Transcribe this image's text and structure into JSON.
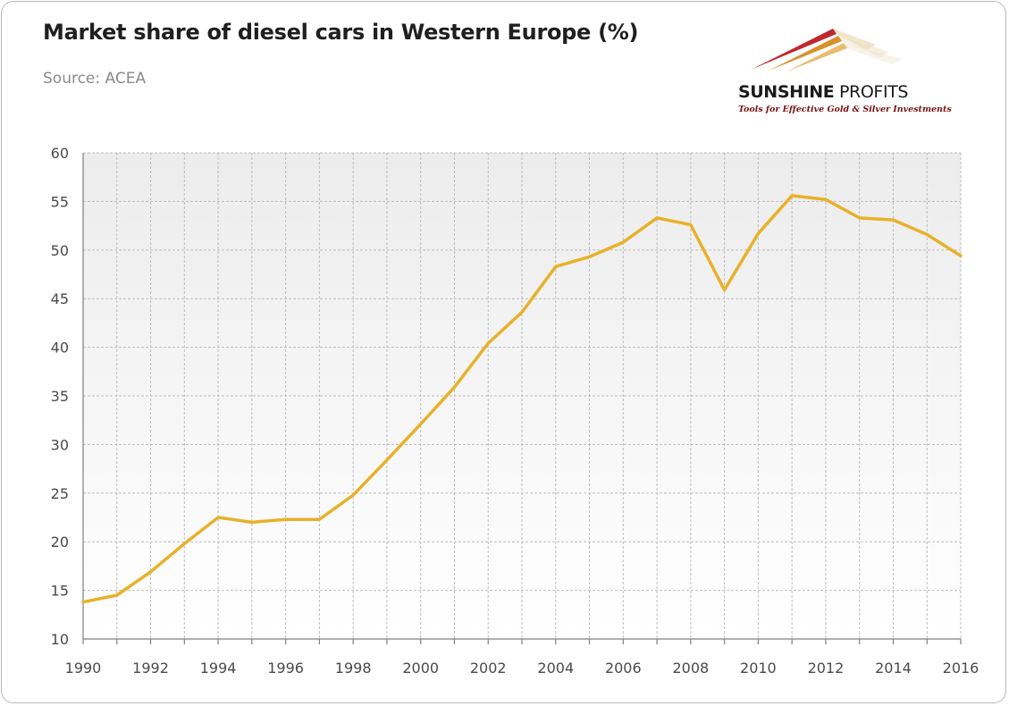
{
  "header": {
    "title": "Market share of diesel cars in Western Europe (%)",
    "source": "Source: ACEA"
  },
  "logo": {
    "name_bold": "SUNSHINE",
    "name_light": " PROFITS",
    "tagline": "Tools for Effective Gold & Silver Investments"
  },
  "colors": {
    "line": "#E8B12A",
    "grid": "#bdbdbd",
    "axis": "#7f7f7f",
    "logo_red": "#C0282D",
    "logo_gold": "#E2A53A"
  },
  "chart_data": {
    "type": "line",
    "title": "Market share of diesel cars in Western Europe (%)",
    "subtitle": "Source: ACEA",
    "xlabel": "",
    "ylabel": "",
    "x": [
      1990,
      1991,
      1992,
      1993,
      1994,
      1995,
      1996,
      1997,
      1998,
      1999,
      2000,
      2001,
      2002,
      2003,
      2004,
      2005,
      2006,
      2007,
      2008,
      2009,
      2010,
      2011,
      2012,
      2013,
      2014,
      2015,
      2016
    ],
    "series": [
      {
        "values": [
          13.8,
          14.5,
          16.9,
          19.8,
          22.5,
          22.0,
          22.3,
          22.3,
          24.8,
          28.4,
          32.1,
          35.9,
          40.4,
          43.6,
          48.3,
          49.3,
          50.8,
          53.3,
          52.6,
          45.9,
          51.7,
          55.6,
          55.2,
          53.3,
          53.1,
          51.6,
          49.4
        ]
      }
    ],
    "xlim": [
      1990,
      2016
    ],
    "ylim": [
      10,
      60
    ],
    "yticks": [
      10,
      15,
      20,
      25,
      30,
      35,
      40,
      45,
      50,
      55,
      60
    ],
    "xtick_labels": [
      "1990",
      "1992",
      "1994",
      "1996",
      "1998",
      "2000",
      "2002",
      "2004",
      "2006",
      "2008",
      "2010",
      "2012",
      "2014",
      "2016"
    ],
    "grid": true,
    "legend": "none"
  }
}
